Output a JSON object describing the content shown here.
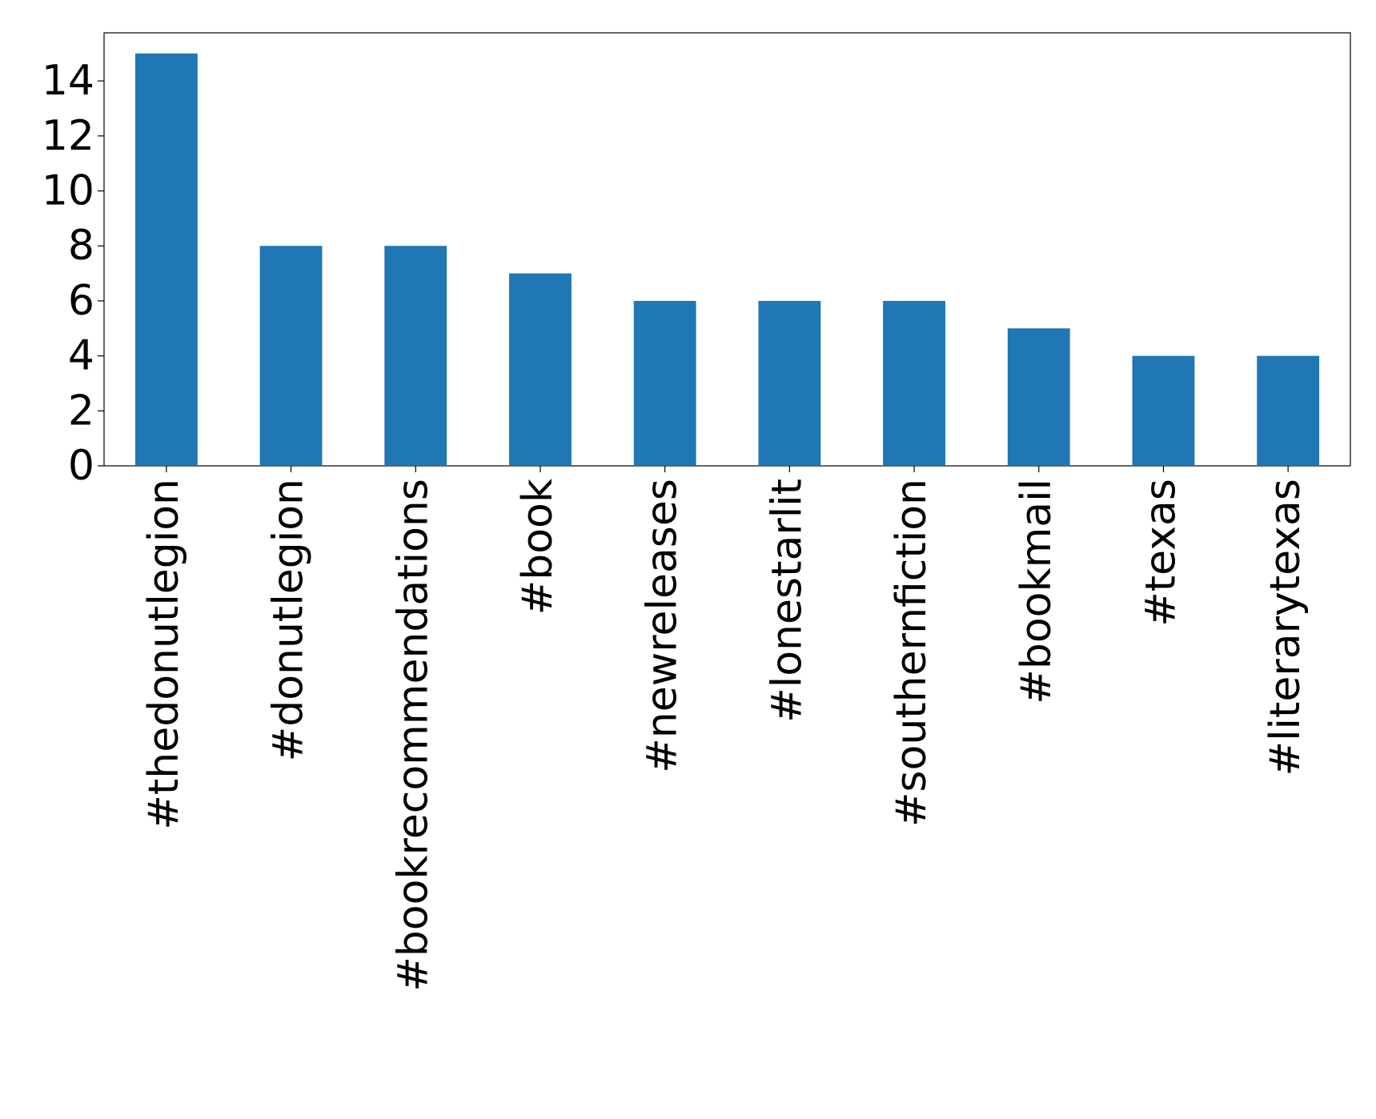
{
  "chart_data": {
    "type": "bar",
    "categories": [
      "#thedonutlegion",
      "#donutlegion",
      "#bookrecommendations",
      "#book",
      "#newreleases",
      "#lonestarlit",
      "#southernfiction",
      "#bookmail",
      "#texas",
      "#literarytexas"
    ],
    "values": [
      15,
      8,
      8,
      7,
      6,
      6,
      6,
      5,
      4,
      4
    ],
    "color": "#1f77b4",
    "ylim": [
      0,
      15.75
    ],
    "yticks": [
      0,
      2,
      4,
      6,
      8,
      10,
      12,
      14
    ],
    "grid": false
  }
}
